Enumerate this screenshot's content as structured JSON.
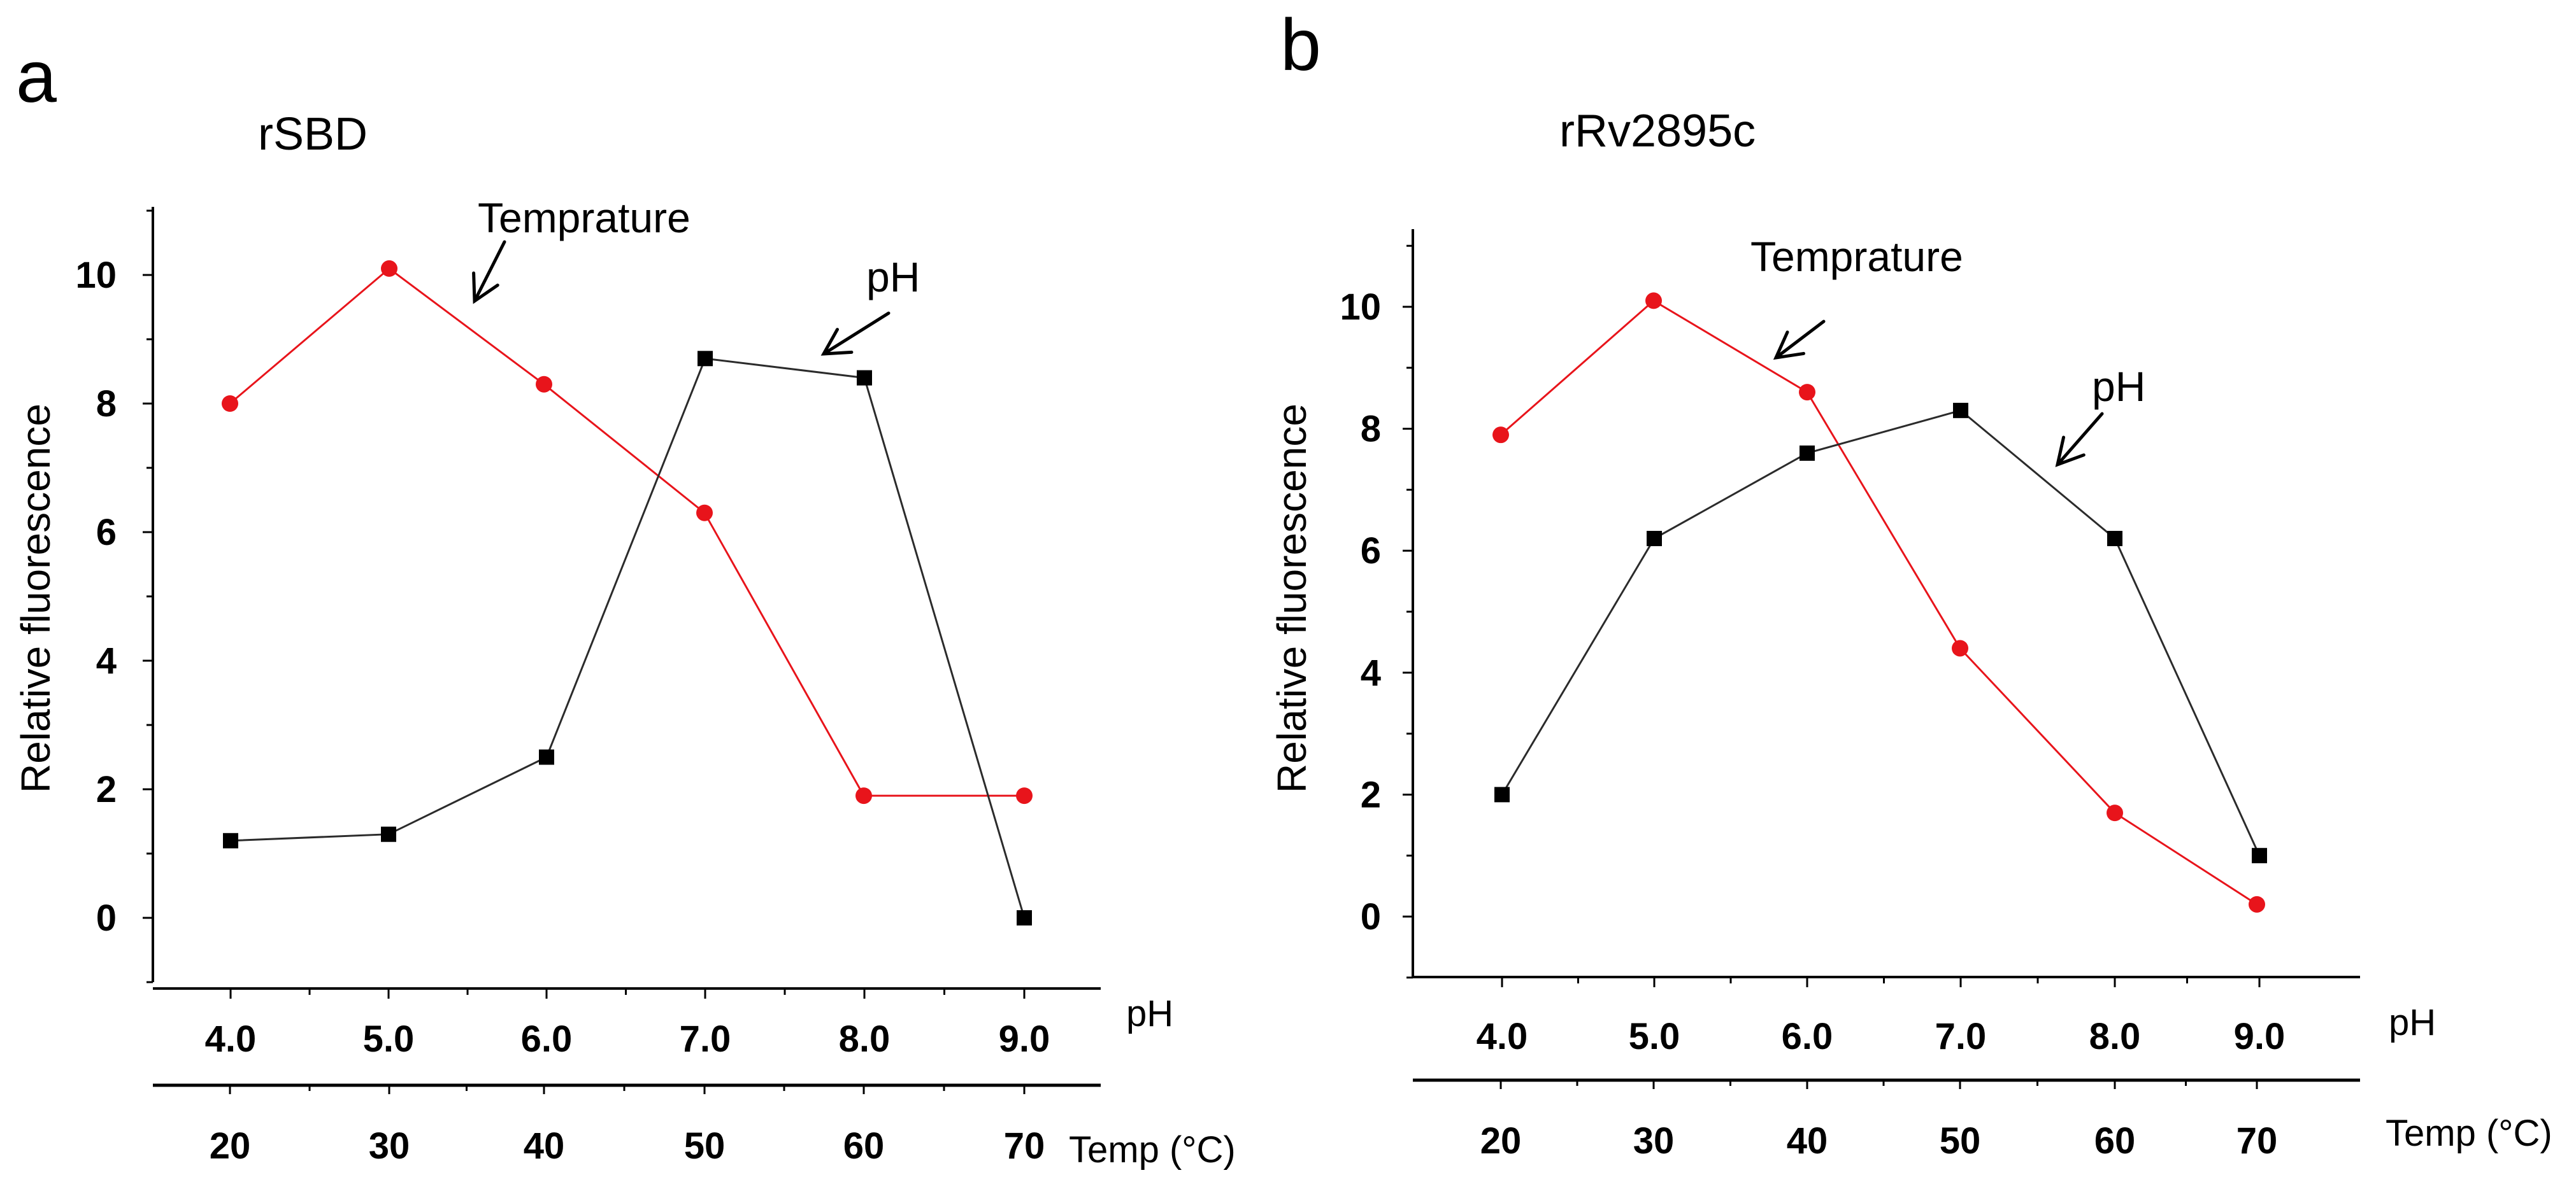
{
  "chart_data": [
    {
      "type": "line",
      "panel": "a",
      "title": "rSBD",
      "ylabel": "Relative fluorescence",
      "ylim": [
        -1,
        11
      ],
      "yticks": [
        0,
        2,
        4,
        6,
        8,
        10
      ],
      "x_ph": {
        "label": "pH",
        "ticks": [
          "4.0",
          "5.0",
          "6.0",
          "7.0",
          "8.0",
          "9.0"
        ]
      },
      "x_temp": {
        "label": "Temp (°C)",
        "ticks": [
          "20",
          "30",
          "40",
          "50",
          "60",
          "70"
        ]
      },
      "series": [
        {
          "name": "Temprature",
          "color": "#e8141b",
          "marker": "circle",
          "axis": "temp",
          "x": [
            20,
            30,
            40,
            50,
            60,
            70
          ],
          "values": [
            8.0,
            10.1,
            8.3,
            6.3,
            1.9,
            1.9
          ]
        },
        {
          "name": "pH",
          "color": "#2b2b2b",
          "marker": "square",
          "axis": "ph",
          "x": [
            4.0,
            5.0,
            6.0,
            7.0,
            8.0,
            9.0
          ],
          "values": [
            1.2,
            1.3,
            2.5,
            8.7,
            8.4,
            0.0
          ]
        }
      ],
      "annotations": [
        {
          "text": "Temprature",
          "target": "Temprature"
        },
        {
          "text": "pH",
          "target": "pH"
        }
      ]
    },
    {
      "type": "line",
      "panel": "b",
      "title": "rRv2895c",
      "ylabel": "Relative fluorescence",
      "ylim": [
        -1,
        11
      ],
      "yticks": [
        0,
        2,
        4,
        6,
        8,
        10
      ],
      "x_ph": {
        "label": "pH",
        "ticks": [
          "4.0",
          "5.0",
          "6.0",
          "7.0",
          "8.0",
          "9.0"
        ]
      },
      "x_temp": {
        "label": "Temp (°C)",
        "ticks": [
          "20",
          "30",
          "40",
          "50",
          "60",
          "70"
        ]
      },
      "series": [
        {
          "name": "Temprature",
          "color": "#e8141b",
          "marker": "circle",
          "axis": "temp",
          "x": [
            20,
            30,
            40,
            50,
            60,
            70
          ],
          "values": [
            7.9,
            10.1,
            8.6,
            4.4,
            1.7,
            0.2
          ]
        },
        {
          "name": "pH",
          "color": "#2b2b2b",
          "marker": "square",
          "axis": "ph",
          "x": [
            4.0,
            5.0,
            6.0,
            7.0,
            8.0,
            9.0
          ],
          "values": [
            2.0,
            6.2,
            7.6,
            8.3,
            6.2,
            1.0
          ]
        }
      ],
      "annotations": [
        {
          "text": "Temprature",
          "target": "Temprature"
        },
        {
          "text": "pH",
          "target": "pH"
        }
      ]
    }
  ]
}
